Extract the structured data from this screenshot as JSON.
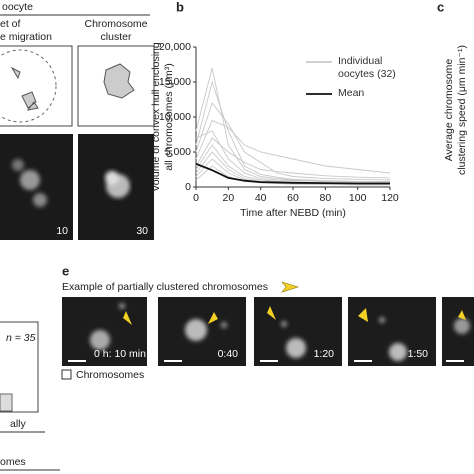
{
  "panel_a": {
    "header": "oocyte",
    "col1": [
      "et of",
      "e migration"
    ],
    "col2": [
      "Chromosome",
      "cluster"
    ],
    "times": [
      "10",
      "30"
    ]
  },
  "panel_b": {
    "label": "b"
  },
  "panel_c": {
    "label": "c",
    "y_label": [
      "Average chromosome",
      "clustering speed (μm min⁻¹)"
    ]
  },
  "panel_d": {
    "n": "n = 35",
    "texts": [
      "ally",
      "omes"
    ]
  },
  "panel_e": {
    "label": "e",
    "caption": "Example of partially clustered chromosomes",
    "times": [
      "0 h: 10 min",
      "0:40",
      "1:20",
      "1:50"
    ],
    "legend": "Chromosomes"
  },
  "chart_data": {
    "type": "line",
    "y_label": [
      "Volume of convex hull enclosing",
      "all chromosomes (μm³)"
    ],
    "x_label": "Time after NEBD (min)",
    "x": [
      0,
      10,
      20,
      30,
      40,
      50,
      60,
      80,
      100,
      120
    ],
    "xlim": [
      0,
      120
    ],
    "xticks": [
      0,
      20,
      40,
      60,
      80,
      100,
      120
    ],
    "ylim": [
      0,
      20000
    ],
    "yticks": [
      0,
      {
        "value": 5000,
        "label": "5,000"
      },
      {
        "value": 10000,
        "label": "10,000"
      },
      {
        "value": 15000,
        "label": "15,000"
      },
      {
        "value": 20000,
        "label": "20,000"
      }
    ],
    "series": [
      {
        "name": "Individual oocytes (32)",
        "color": "#c8c8c8",
        "values": [
          8000,
          17000,
          6000,
          2500,
          1500,
          1200,
          1000,
          800,
          700,
          700
        ]
      },
      {
        "color": "#c8c8c8",
        "values": [
          6000,
          15000,
          8000,
          3000,
          1800,
          1400,
          1100,
          900,
          800,
          800
        ]
      },
      {
        "color": "#c8c8c8",
        "values": [
          5000,
          12000,
          9000,
          5000,
          3500,
          2000,
          1500,
          1200,
          1100,
          1000
        ]
      },
      {
        "color": "#c8c8c8",
        "values": [
          4000,
          9500,
          8500,
          6000,
          5000,
          4500,
          4000,
          3000,
          2500,
          2000
        ]
      },
      {
        "color": "#c8c8c8",
        "values": [
          7000,
          8000,
          4000,
          2000,
          1200,
          1000,
          900,
          800,
          700,
          600
        ]
      },
      {
        "color": "#c8c8c8",
        "values": [
          3000,
          7000,
          5000,
          3500,
          2500,
          2200,
          2000,
          1600,
          1400,
          1300
        ]
      },
      {
        "color": "#c8c8c8",
        "values": [
          2500,
          6000,
          3000,
          1500,
          1000,
          800,
          700,
          600,
          500,
          500
        ]
      },
      {
        "color": "#c8c8c8",
        "values": [
          2000,
          5000,
          2500,
          1200,
          800,
          700,
          600,
          500,
          450,
          400
        ]
      },
      {
        "color": "#c8c8c8",
        "values": [
          1500,
          4000,
          2000,
          1000,
          700,
          600,
          500,
          450,
          400,
          350
        ]
      },
      {
        "color": "#c8c8c8",
        "values": [
          1000,
          3000,
          1500,
          800,
          600,
          500,
          400,
          350,
          300,
          300
        ]
      },
      {
        "name": "Mean",
        "color": "#111111",
        "values": [
          3300,
          2400,
          1300,
          900,
          700,
          650,
          600,
          550,
          500,
          500
        ]
      }
    ]
  }
}
